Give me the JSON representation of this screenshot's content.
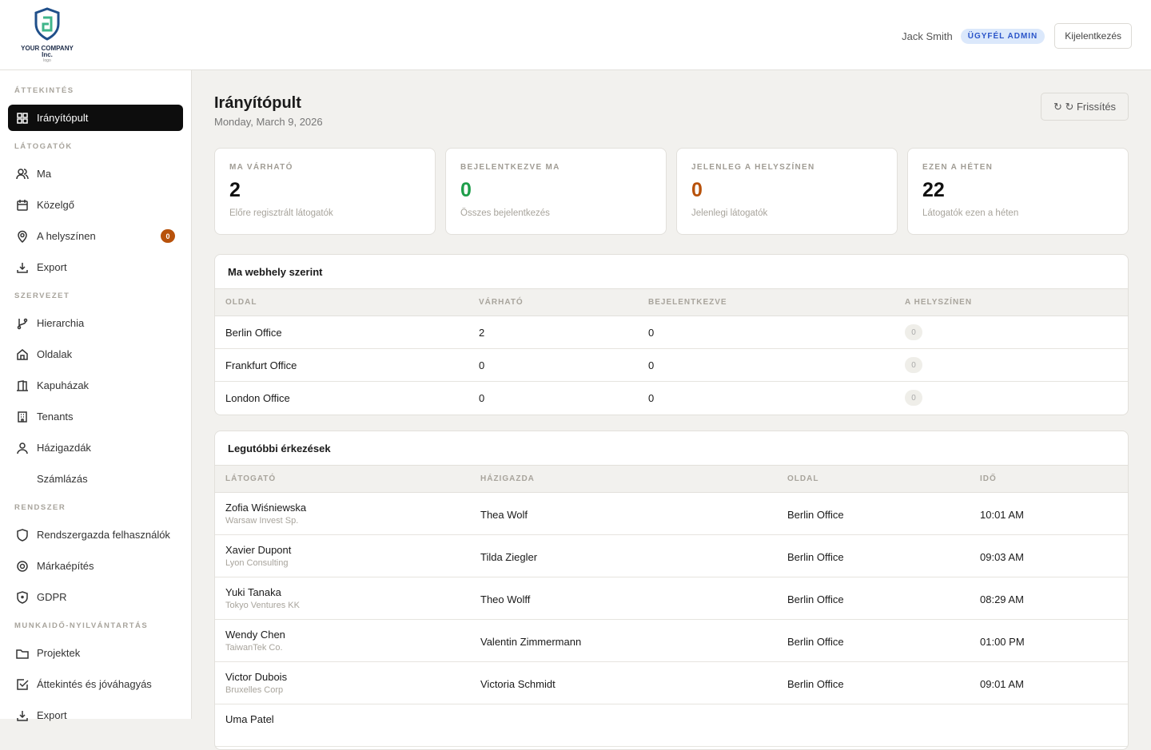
{
  "header": {
    "logo_text": "YOUR COMPANY Inc.",
    "logo_sub": "logo",
    "user_name": "Jack Smith",
    "role_badge": "ÜGYFÉL ADMIN",
    "logout_label": "Kijelentkezés"
  },
  "sidebar": {
    "sections": [
      "ÁTTEKINTÉS",
      "LÁTOGATÓK",
      "SZERVEZET",
      "RENDSZER",
      "MUNKAIDŐ-NYILVÁNTARTÁS"
    ],
    "items": [
      {
        "label": "Irányítópult",
        "icon": "grid-icon",
        "active": true
      },
      {
        "label": "Ma",
        "icon": "users-icon"
      },
      {
        "label": "Közelgő",
        "icon": "calendar-icon"
      },
      {
        "label": "A helyszínen",
        "icon": "map-pin-icon",
        "badge": "0"
      },
      {
        "label": "Export",
        "icon": "download-icon"
      },
      {
        "label": "Hierarchia",
        "icon": "git-branch-icon"
      },
      {
        "label": "Oldalak",
        "icon": "home-icon"
      },
      {
        "label": "Kapuházak",
        "icon": "door-icon"
      },
      {
        "label": "Tenants",
        "icon": "building-icon"
      },
      {
        "label": "Házigazdák",
        "icon": "user-icon"
      },
      {
        "label": "Számlázás",
        "icon": ""
      },
      {
        "label": "Rendszergazda felhasználók",
        "icon": "shield-icon"
      },
      {
        "label": "Márkaépítés",
        "icon": "target-icon"
      },
      {
        "label": "GDPR",
        "icon": "shield-lock-icon"
      },
      {
        "label": "Projektek",
        "icon": "folder-icon"
      },
      {
        "label": "Áttekintés és jóváhagyás",
        "icon": "check-square-icon"
      },
      {
        "label": "Export",
        "icon": "download-icon"
      }
    ]
  },
  "page": {
    "title": "Irányítópult",
    "date": "Monday, March 9, 2026",
    "refresh_label": "↻ ↻ Frissítés"
  },
  "stats": [
    {
      "label": "MA VÁRHATÓ",
      "value": "2",
      "desc": "Előre regisztrált látogatók",
      "color": "#111111"
    },
    {
      "label": "BEJELENTKEZVE MA",
      "value": "0",
      "desc": "Összes bejelentkezés",
      "color": "#1e9e4a"
    },
    {
      "label": "JELENLEG A HELYSZÍNEN",
      "value": "0",
      "desc": "Jelenlegi látogatók",
      "color": "#b8520b"
    },
    {
      "label": "EZEN A HÉTEN",
      "value": "22",
      "desc": "Látogatók ezen a héten",
      "color": "#111111"
    }
  ],
  "sites": {
    "title": "Ma webhely szerint",
    "columns": [
      "OLDAL",
      "VÁRHATÓ",
      "BEJELENTKEZVE",
      "A HELYSZÍNEN"
    ],
    "rows": [
      [
        "Berlin Office",
        "2",
        "0",
        "0"
      ],
      [
        "Frankfurt Office",
        "0",
        "0",
        "0"
      ],
      [
        "London Office",
        "0",
        "0",
        "0"
      ]
    ]
  },
  "arrivals": {
    "title": "Legutóbbi érkezések",
    "columns": [
      "LÁTOGATÓ",
      "HÁZIGAZDA",
      "OLDAL",
      "IDŐ"
    ],
    "rows": [
      {
        "name": "Zofia Wiśniewska",
        "company": "Warsaw Invest Sp.",
        "host": "Thea Wolf",
        "site": "Berlin Office",
        "time": "10:01 AM"
      },
      {
        "name": "Xavier Dupont",
        "company": "Lyon Consulting",
        "host": "Tilda Ziegler",
        "site": "Berlin Office",
        "time": "09:03 AM"
      },
      {
        "name": "Yuki Tanaka",
        "company": "Tokyo Ventures KK",
        "host": "Theo Wolff",
        "site": "Berlin Office",
        "time": "08:29 AM"
      },
      {
        "name": "Wendy Chen",
        "company": "TaiwanTek Co.",
        "host": "Valentin Zimmermann",
        "site": "Berlin Office",
        "time": "01:00 PM"
      },
      {
        "name": "Victor Dubois",
        "company": "Bruxelles Corp",
        "host": "Victoria Schmidt",
        "site": "Berlin Office",
        "time": "09:01 AM"
      },
      {
        "name": "Uma Patel"
      }
    ]
  }
}
